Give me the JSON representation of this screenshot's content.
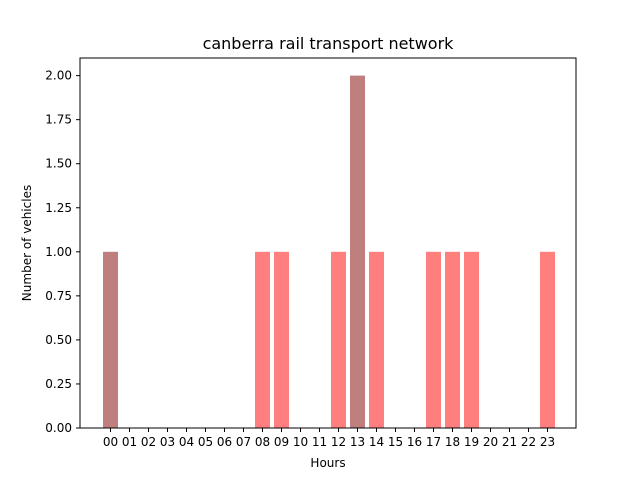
{
  "chart_data": {
    "type": "bar",
    "title": "canberra rail transport network",
    "xlabel": "Hours",
    "ylabel": "Number of vehicles",
    "categories": [
      "00",
      "01",
      "02",
      "03",
      "04",
      "05",
      "06",
      "07",
      "08",
      "09",
      "10",
      "11",
      "12",
      "13",
      "14",
      "15",
      "16",
      "17",
      "18",
      "19",
      "20",
      "21",
      "22",
      "23"
    ],
    "series": [
      {
        "values": [
          0,
          0,
          0,
          0,
          0,
          0,
          0,
          0,
          1,
          1,
          0,
          0,
          1,
          0,
          1,
          0,
          0,
          1,
          1,
          1,
          0,
          0,
          0,
          1
        ],
        "color": "#ff0000",
        "opacity": 0.5
      },
      {
        "values": [
          1,
          0,
          0,
          0,
          0,
          0,
          0,
          0,
          0,
          0,
          0,
          0,
          0,
          2,
          0,
          0,
          0,
          0,
          0,
          0,
          0,
          0,
          0,
          0
        ],
        "color": "#800000",
        "opacity": 0.5
      }
    ],
    "ylim": [
      0,
      2.1
    ],
    "yticks": [
      "0.00",
      "0.25",
      "0.50",
      "0.75",
      "1.00",
      "1.25",
      "1.50",
      "1.75",
      "2.00"
    ],
    "grid": false,
    "legend": "none"
  }
}
